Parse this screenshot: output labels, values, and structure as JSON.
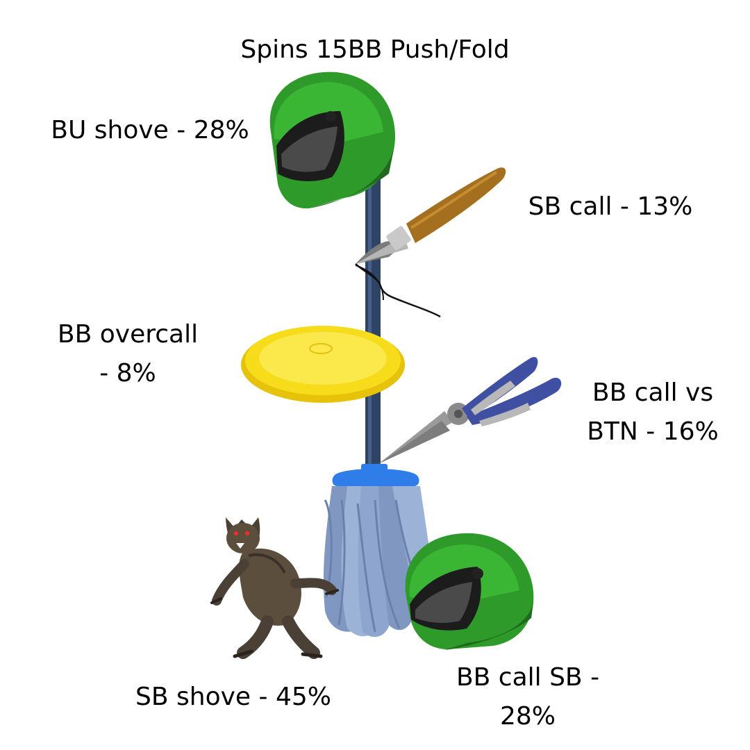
{
  "title": "Spins 15BB Push/Fold",
  "labels": {
    "bu_shove": "BU shove - 28%",
    "sb_call": "SB call - 13%",
    "bb_overcall_line1": "BB overcall",
    "bb_overcall_line2": "- 8%",
    "bb_call_vs_btn_line1": "BB call vs",
    "bb_call_vs_btn_line2": "BTN - 16%",
    "sb_shove": "SB shove - 45%",
    "bb_call_sb_line1": "BB call SB -",
    "bb_call_sb_line2": "28%"
  },
  "illustrations": {
    "top_helmet": "helmet-icon",
    "knife": "scalpel-icon",
    "lid": "bucket-lid-icon",
    "pliers": "pliers-icon",
    "mop": "mop-icon",
    "werewolf": "werewolf-icon",
    "bottom_helmet": "helmet-icon"
  },
  "colors": {
    "helmet_green": "#2e9a2a",
    "helmet_dark": "#1f6a1c",
    "visor": "#1c1c1c",
    "pole": "#2f4365",
    "lid_yellow": "#f6dc1a",
    "knife_handle": "#a4701f",
    "pliers_handle": "#3f4fa1",
    "mop_head": "#8ea6cd",
    "mop_cap": "#2f7de8",
    "werewolf_fur": "#5b4e3d"
  }
}
